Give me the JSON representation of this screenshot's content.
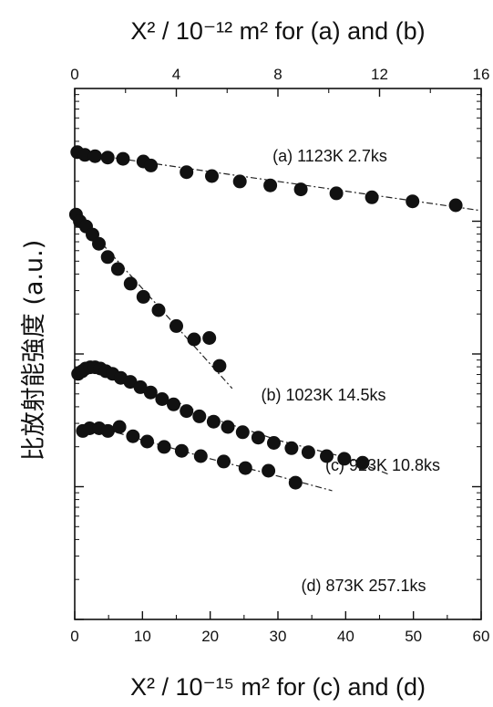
{
  "chart_data": {
    "type": "scatter",
    "title_top": "X² / 10⁻¹² m² for (a) and (b)",
    "xlabel_bottom": "X² / 10⁻¹⁵ m² for (c) and (d)",
    "ylabel": "比放射能強度 (a.u.)",
    "x_bottom": {
      "lim": [
        0,
        60
      ],
      "ticks": [
        0,
        10,
        20,
        30,
        40,
        50,
        60
      ]
    },
    "x_top": {
      "lim": [
        0,
        16
      ],
      "ticks": [
        0,
        4,
        8,
        12,
        16
      ]
    },
    "y_scale": "log",
    "y_range_log10": [
      0,
      4
    ],
    "y_tick_labels_shown": false,
    "series": [
      {
        "name": "(a) 1123K 2.7ks",
        "x_axis": "top",
        "points": [
          [
            0.1,
            3.52
          ],
          [
            0.4,
            3.5
          ],
          [
            0.8,
            3.49
          ],
          [
            1.3,
            3.48
          ],
          [
            1.9,
            3.47
          ],
          [
            2.7,
            3.45
          ],
          [
            3.0,
            3.42
          ],
          [
            4.4,
            3.37
          ],
          [
            5.4,
            3.34
          ],
          [
            6.5,
            3.3
          ],
          [
            7.7,
            3.27
          ],
          [
            8.9,
            3.24
          ],
          [
            10.3,
            3.21
          ],
          [
            11.7,
            3.18
          ],
          [
            13.3,
            3.15
          ],
          [
            15.0,
            3.12
          ]
        ],
        "fit": [
          [
            0,
            3.52
          ],
          [
            16,
            3.08
          ]
        ]
      },
      {
        "name": "(b) 1023K 14.5ks",
        "x_axis": "top",
        "points": [
          [
            0.05,
            3.05
          ],
          [
            0.2,
            3.0
          ],
          [
            0.45,
            2.96
          ],
          [
            0.7,
            2.9
          ],
          [
            0.95,
            2.83
          ],
          [
            1.3,
            2.73
          ],
          [
            1.7,
            2.64
          ],
          [
            2.2,
            2.53
          ],
          [
            2.7,
            2.43
          ],
          [
            3.3,
            2.33
          ],
          [
            4.0,
            2.21
          ],
          [
            4.7,
            2.11
          ],
          [
            5.3,
            2.12
          ],
          [
            5.7,
            1.91
          ]
        ],
        "fit": [
          [
            0,
            3.06
          ],
          [
            6.2,
            1.74
          ]
        ]
      },
      {
        "name": "(c) 923K 10.8ks",
        "x_axis": "bottom",
        "points": [
          [
            0.5,
            1.85
          ],
          [
            1.1,
            1.87
          ],
          [
            1.6,
            1.89
          ],
          [
            2.3,
            1.9
          ],
          [
            3.0,
            1.9
          ],
          [
            3.8,
            1.89
          ],
          [
            4.6,
            1.87
          ],
          [
            5.6,
            1.85
          ],
          [
            6.8,
            1.82
          ],
          [
            8.2,
            1.79
          ],
          [
            9.7,
            1.75
          ],
          [
            11.2,
            1.71
          ],
          [
            12.9,
            1.66
          ],
          [
            14.6,
            1.62
          ],
          [
            16.5,
            1.57
          ],
          [
            18.4,
            1.53
          ],
          [
            20.5,
            1.49
          ],
          [
            22.6,
            1.45
          ],
          [
            24.8,
            1.41
          ],
          [
            27.1,
            1.37
          ],
          [
            29.4,
            1.33
          ],
          [
            32.0,
            1.29
          ],
          [
            34.5,
            1.26
          ],
          [
            37.2,
            1.23
          ],
          [
            39.8,
            1.21
          ],
          [
            42.5,
            1.18
          ]
        ],
        "fit": [
          [
            0.2,
            1.83
          ],
          [
            3.0,
            1.91
          ],
          [
            8,
            1.81
          ],
          [
            20,
            1.52
          ],
          [
            30,
            1.35
          ],
          [
            40,
            1.22
          ],
          [
            46.5,
            1.09
          ]
        ]
      },
      {
        "name": "(d) 873K 257.1ks",
        "x_axis": "bottom",
        "points": [
          [
            1.2,
            1.42
          ],
          [
            2.2,
            1.44
          ],
          [
            3.6,
            1.44
          ],
          [
            4.9,
            1.42
          ],
          [
            6.6,
            1.45
          ],
          [
            8.6,
            1.38
          ],
          [
            10.7,
            1.34
          ],
          [
            13.2,
            1.3
          ],
          [
            15.8,
            1.27
          ],
          [
            18.6,
            1.23
          ],
          [
            22.0,
            1.19
          ],
          [
            25.2,
            1.14
          ],
          [
            28.6,
            1.12
          ],
          [
            32.6,
            1.03
          ]
        ],
        "fit": [
          [
            0.7,
            1.4
          ],
          [
            3.0,
            1.46
          ],
          [
            8,
            1.38
          ],
          [
            20,
            1.21
          ],
          [
            30,
            1.08
          ],
          [
            38,
            0.97
          ]
        ]
      }
    ],
    "grid": false,
    "legend": "none"
  }
}
